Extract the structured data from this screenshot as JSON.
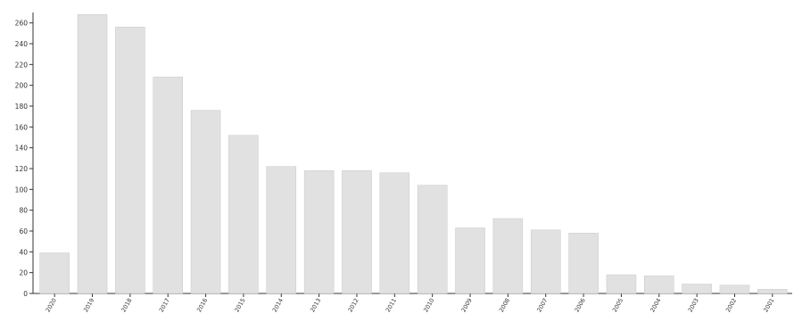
{
  "chart_data": {
    "type": "bar",
    "categories": [
      "2020",
      "2019",
      "2018",
      "2017",
      "2016",
      "2015",
      "2014",
      "2013",
      "2012",
      "2011",
      "2010",
      "2009",
      "2008",
      "2007",
      "2006",
      "2005",
      "2004",
      "2003",
      "2002",
      "2001"
    ],
    "values": [
      39,
      268,
      256,
      208,
      176,
      152,
      122,
      118,
      118,
      116,
      104,
      63,
      72,
      61,
      58,
      18,
      17,
      9,
      8,
      4
    ],
    "title": "",
    "xlabel": "",
    "ylabel": "",
    "ylim": [
      0,
      270
    ],
    "yticks": [
      0,
      20,
      40,
      60,
      80,
      100,
      120,
      140,
      160,
      180,
      200,
      220,
      240,
      260
    ],
    "grid": false,
    "legend": "none",
    "colors": {
      "bar": "#e1e1e1",
      "bar_edge": "#c9c9c9",
      "axis": "#333333",
      "text": "#333333"
    }
  }
}
